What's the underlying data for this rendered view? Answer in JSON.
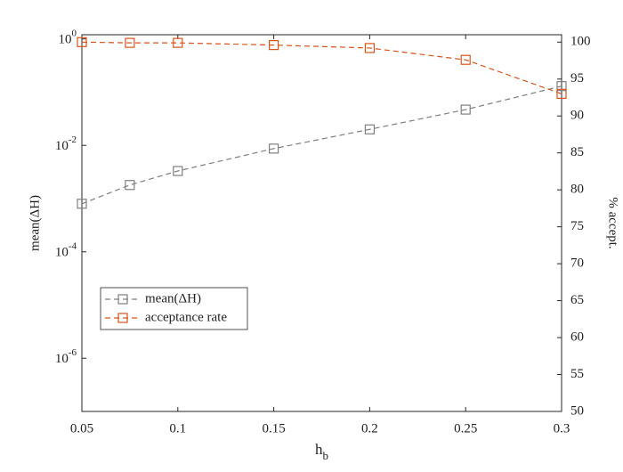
{
  "chart_data": {
    "type": "line",
    "x_label": "h_b",
    "y_label": "mean(ΔH)",
    "y2_label": "% accept.",
    "x": [
      0.05,
      0.075,
      0.1,
      0.15,
      0.2,
      0.25,
      0.3
    ],
    "series": [
      {
        "name": "mean(ΔH)",
        "color": "#7f7f7f",
        "axis": "y",
        "values": [
          0.0008,
          0.0018,
          0.0033,
          0.0087,
          0.02,
          0.047,
          0.13
        ]
      },
      {
        "name": "acceptance rate",
        "color": "#d95319",
        "axis": "y2",
        "values": [
          100,
          99.9,
          99.9,
          99.6,
          99.2,
          97.6,
          93.0
        ]
      }
    ],
    "xlim": [
      0.05,
      0.3
    ],
    "xticks": [
      0.05,
      0.1,
      0.15,
      0.2,
      0.25,
      0.3
    ],
    "ylim": [
      1e-07,
      1.2
    ],
    "ylog": true,
    "yticks": [
      {
        "value": 1e-06,
        "label": "10^-6"
      },
      {
        "value": 0.0001,
        "label": "10^-4"
      },
      {
        "value": 0.01,
        "label": "10^-2"
      },
      {
        "value": 1,
        "label": "10^0"
      }
    ],
    "y2lim": [
      50,
      101
    ],
    "y2ticks": [
      50,
      55,
      60,
      65,
      70,
      75,
      80,
      85,
      90,
      95,
      100
    ],
    "legend": "lower left",
    "grid": false
  }
}
